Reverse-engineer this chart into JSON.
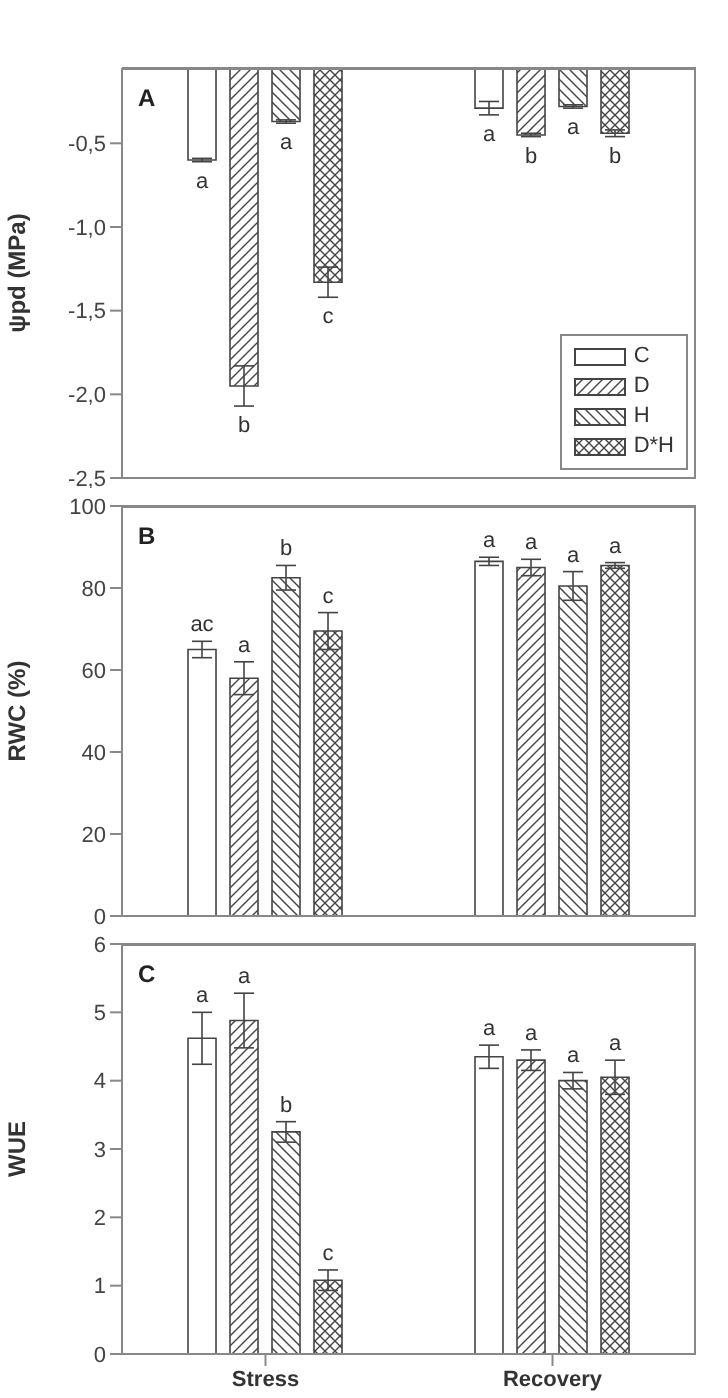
{
  "chart_data": [
    {
      "type": "bar",
      "annotations": [
        "A"
      ],
      "ylabel": "ψpd (MPa)",
      "categories": [
        null,
        null
      ],
      "ylim": [
        -2.5,
        -0.05
      ],
      "yticks": [
        {
          "value": -0.5,
          "label": "-0,5"
        },
        {
          "value": -1.0,
          "label": "-1,0"
        },
        {
          "value": -1.5,
          "label": "-1,5"
        },
        {
          "value": -2.0,
          "label": "-2,0"
        },
        {
          "value": -2.5,
          "label": "-2,5"
        }
      ],
      "tick_labels": "y",
      "legend": "bottom right",
      "series": [
        {
          "name": "C",
          "color": "#444444",
          "values": [
            -0.6,
            -0.29
          ],
          "errors": [
            0.01,
            0.04
          ],
          "value_labels": [
            "a",
            "a"
          ]
        },
        {
          "name": "D",
          "color": "#444444",
          "values": [
            -1.95,
            -0.45
          ],
          "errors": [
            0.12,
            0.01
          ],
          "value_labels": [
            "b",
            "b"
          ]
        },
        {
          "name": "H",
          "color": "#444444",
          "values": [
            -0.37,
            -0.28
          ],
          "errors": [
            0.01,
            0.01
          ],
          "value_labels": [
            "a",
            "a"
          ]
        },
        {
          "name": "D*H",
          "color": "#444444",
          "values": [
            -1.33,
            -0.44
          ],
          "errors": [
            0.09,
            0.02
          ],
          "value_labels": [
            "c",
            "b"
          ]
        }
      ]
    },
    {
      "type": "bar",
      "annotations": [
        "B"
      ],
      "ylabel": "RWC (%)",
      "categories": [
        null,
        null
      ],
      "ylim": [
        0,
        100
      ],
      "yticks": [
        0,
        20,
        40,
        60,
        80,
        100
      ],
      "tick_labels": "y",
      "series": [
        {
          "color": "#444444",
          "values": [
            65,
            86.5
          ],
          "errors": [
            2,
            1
          ],
          "value_labels": [
            "ac",
            "a"
          ]
        },
        {
          "color": "#444444",
          "values": [
            58,
            85
          ],
          "errors": [
            4,
            2
          ],
          "value_labels": [
            "a",
            "a"
          ]
        },
        {
          "color": "#444444",
          "values": [
            82.5,
            80.5
          ],
          "errors": [
            3,
            3.5
          ],
          "value_labels": [
            "b",
            "a"
          ]
        },
        {
          "color": "#444444",
          "values": [
            69.5,
            85.5
          ],
          "errors": [
            4.5,
            0.7
          ],
          "value_labels": [
            "c",
            "a"
          ]
        }
      ]
    },
    {
      "type": "bar",
      "annotations": [
        "C"
      ],
      "ylabel": "WUE",
      "categories": [
        "Stress",
        "Recovery"
      ],
      "ylim": [
        0,
        6
      ],
      "yticks": [
        0,
        1,
        2,
        3,
        4,
        5,
        6
      ],
      "series": [
        {
          "color": "#444444",
          "values": [
            4.62,
            4.35
          ],
          "errors": [
            0.38,
            0.17
          ],
          "value_labels": [
            "a",
            "a"
          ]
        },
        {
          "color": "#444444",
          "values": [
            4.88,
            4.3
          ],
          "errors": [
            0.4,
            0.15
          ],
          "value_labels": [
            "a",
            "a"
          ]
        },
        {
          "color": "#444444",
          "values": [
            3.25,
            4.0
          ],
          "errors": [
            0.15,
            0.12
          ],
          "value_labels": [
            "b",
            "a"
          ]
        },
        {
          "color": "#444444",
          "values": [
            1.08,
            4.05
          ],
          "errors": [
            0.15,
            0.25
          ],
          "value_labels": [
            "c",
            "a"
          ]
        }
      ]
    }
  ]
}
